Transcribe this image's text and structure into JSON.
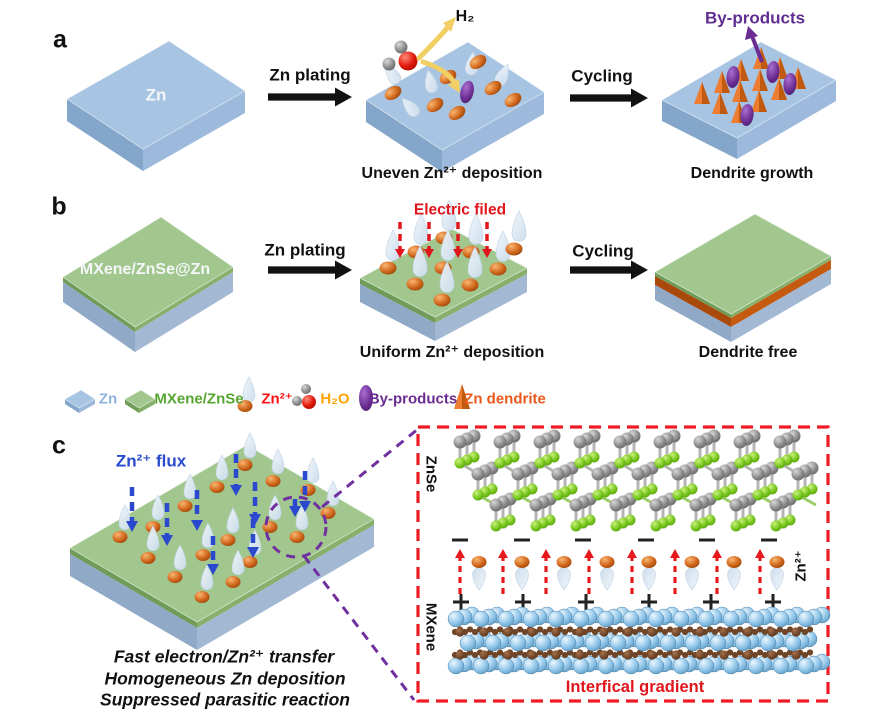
{
  "panels": {
    "a": "a",
    "b": "b",
    "c": "c"
  },
  "labels": {
    "zn_slab": "Zn",
    "mxene_slab": "MXene/ZnSe@Zn",
    "zn_plating": "Zn plating",
    "cycling": "Cycling",
    "h2": "H₂",
    "uneven_caption": "Uneven Zn²⁺ deposition",
    "dendrite_growth_caption": "Dendrite growth",
    "byproducts_callout": "By-products",
    "electric_field": "Electric filed",
    "uniform_caption": "Uniform Zn²⁺ deposition",
    "dendrite_free_caption": "Dendrite free",
    "zn_flux": "Zn²⁺ flux",
    "fast_transfer_line": "Fast electron/Zn²⁺ transfer",
    "homogeneous_line": "Homogeneous Zn deposition",
    "suppressed_line": "Suppressed parasitic reaction",
    "znse_layer": "ZnSe",
    "mxene_layer": "MXene",
    "zn_ion_side": "Zn²⁺",
    "interfacial_gradient": "Interfical gradient"
  },
  "legend": {
    "items": [
      {
        "label": "Zn",
        "color": "#8db4dd",
        "icon": "blue-slab"
      },
      {
        "label": "MXene/ZnSe",
        "color": "#55a630",
        "icon": "green-slab"
      },
      {
        "label": "Zn²⁺",
        "color": "#ff1111",
        "icon": "droplet-ion"
      },
      {
        "label": "H₂O",
        "color": "#ffa400",
        "icon": "water-molecule"
      },
      {
        "label": "By-products",
        "color": "#6a2c91",
        "icon": "purple-oval"
      },
      {
        "label": "Zn dendrite",
        "color": "#e8591a",
        "icon": "orange-cone"
      }
    ]
  },
  "colors": {
    "zn_slab_top": "#a7c4e2",
    "zn_slab_side": "#84a6cb",
    "mxene_slab_top": "#a1c78e",
    "mxene_slab_side": "#7ca965",
    "orange_layer": "#c55a11",
    "ion_orange": "#d2691e",
    "dendrite_orange": "#ed7d31",
    "byproduct_purple": "#6a2c91",
    "field_red": "#e0161c",
    "flux_blue": "#2b49cf",
    "h2_arrow_yellow": "#f2cf63",
    "se_green": "#76c71c",
    "zn_atom_gray": "#8a8a8a",
    "ti_atom_blue": "#8cc3e8",
    "c_atom_brown": "#6f4528"
  }
}
